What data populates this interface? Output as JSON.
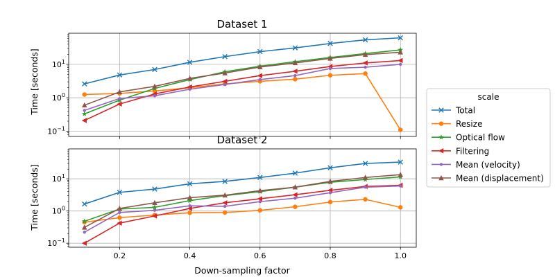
{
  "chart_data": [
    {
      "type": "line",
      "title": "Dataset 1",
      "xlabel": "",
      "ylabel": "Time [seconds]",
      "yscale": "log",
      "xlim": [
        0.055,
        1.045
      ],
      "ylim": [
        0.07,
        85
      ],
      "xticks": [
        "0.2",
        "0.4",
        "0.6",
        "0.8",
        "1.0"
      ],
      "yticks": [
        {
          "base": "10",
          "exp": "−1"
        },
        {
          "base": "10",
          "exp": "0"
        },
        {
          "base": "10",
          "exp": "1"
        }
      ],
      "grid": true,
      "x": [
        0.1,
        0.2,
        0.3,
        0.4,
        0.5,
        0.6,
        0.7,
        0.8,
        0.9,
        1.0
      ],
      "series": [
        {
          "name": "Total",
          "values": [
            2.6,
            4.8,
            7.0,
            11.5,
            17.0,
            24.0,
            31.0,
            42.0,
            54.0,
            62.0
          ]
        },
        {
          "name": "Resize",
          "values": [
            1.25,
            1.35,
            1.6,
            2.0,
            2.6,
            3.1,
            3.6,
            4.7,
            5.3,
            0.11
          ]
        },
        {
          "name": "Optical flow",
          "values": [
            0.33,
            0.85,
            1.9,
            3.5,
            6.0,
            8.8,
            12.0,
            16.0,
            21.0,
            27.0
          ]
        },
        {
          "name": "Filtering",
          "values": [
            0.21,
            0.65,
            1.3,
            2.1,
            3.1,
            4.6,
            6.2,
            8.6,
            11.0,
            13.0
          ]
        },
        {
          "name": "Mean (velocity)",
          "values": [
            0.42,
            0.95,
            1.15,
            1.8,
            2.5,
            3.5,
            4.6,
            7.5,
            8.2,
            10.0
          ]
        },
        {
          "name": "Mean (displacement)",
          "values": [
            0.6,
            1.5,
            2.2,
            3.8,
            5.5,
            8.3,
            11.0,
            15.0,
            19.5,
            23.0
          ]
        }
      ]
    },
    {
      "type": "line",
      "title": "Dataset 2",
      "xlabel": "Down-sampling factor",
      "ylabel": "Time [seconds]",
      "yscale": "log",
      "xlim": [
        0.055,
        1.045
      ],
      "ylim": [
        0.075,
        85
      ],
      "xticks": [
        "0.2",
        "0.4",
        "0.6",
        "0.8",
        "1.0"
      ],
      "yticks": [
        {
          "base": "10",
          "exp": "−1"
        },
        {
          "base": "10",
          "exp": "0"
        },
        {
          "base": "10",
          "exp": "1"
        }
      ],
      "grid": true,
      "x": [
        0.1,
        0.2,
        0.3,
        0.4,
        0.5,
        0.6,
        0.7,
        0.8,
        0.9,
        1.0
      ],
      "series": [
        {
          "name": "Total",
          "values": [
            1.65,
            3.8,
            4.8,
            7.0,
            8.3,
            11.0,
            15.0,
            22.0,
            30.0,
            33.0
          ]
        },
        {
          "name": "Resize",
          "values": [
            0.45,
            0.62,
            0.75,
            0.88,
            0.9,
            1.05,
            1.35,
            1.9,
            2.3,
            1.3
          ]
        },
        {
          "name": "Optical flow",
          "values": [
            0.48,
            1.15,
            1.3,
            2.1,
            3.0,
            4.0,
            5.5,
            7.8,
            9.5,
            11.5
          ]
        },
        {
          "name": "Filtering",
          "values": [
            0.1,
            0.42,
            0.7,
            1.2,
            1.8,
            2.4,
            3.2,
            4.4,
            5.8,
            6.3
          ]
        },
        {
          "name": "Mean (velocity)",
          "values": [
            0.22,
            0.9,
            1.05,
            1.45,
            1.4,
            1.95,
            2.5,
            3.7,
            5.5,
            6.0
          ]
        },
        {
          "name": "Mean (displacement)",
          "values": [
            0.31,
            1.2,
            1.8,
            2.6,
            3.1,
            4.3,
            5.5,
            8.3,
            11.0,
            13.5
          ]
        }
      ]
    }
  ],
  "legend": {
    "title": "scale",
    "placement": "center-right, outside",
    "entries": [
      {
        "label": "Total",
        "color": "#1f77b4",
        "marker": "x-cross"
      },
      {
        "label": "Resize",
        "color": "#ff7f0e",
        "marker": "circle"
      },
      {
        "label": "Optical flow",
        "color": "#2ca02c",
        "marker": "star"
      },
      {
        "label": "Filtering",
        "color": "#d62728",
        "marker": "triangle-left"
      },
      {
        "label": "Mean (velocity)",
        "color": "#9467bd",
        "marker": "small-dot"
      },
      {
        "label": "Mean (displacement)",
        "color": "#8c564b",
        "marker": "triangle-up"
      }
    ]
  }
}
